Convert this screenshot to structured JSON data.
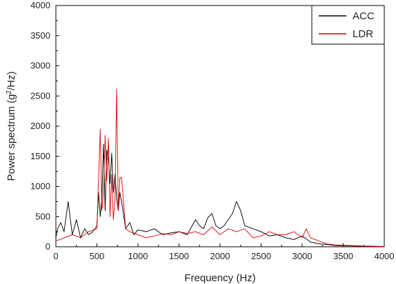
{
  "chart_data": {
    "type": "line",
    "xlabel": "Frequency (Hz)",
    "ylabel_main": "Power spectrum (g",
    "ylabel_sup": "2",
    "ylabel_tail": "/Hz)",
    "xlim": [
      0,
      4000
    ],
    "ylim": [
      0,
      4000
    ],
    "x_ticks": [
      0,
      500,
      1000,
      1500,
      2000,
      2500,
      3000,
      3500,
      4000
    ],
    "y_ticks": [
      0,
      500,
      1000,
      1500,
      2000,
      2500,
      3000,
      3500,
      4000
    ],
    "grid": false,
    "legend_position": "top-right",
    "series": [
      {
        "name": "ACC",
        "color": "#000000",
        "x": [
          0,
          20,
          60,
          100,
          150,
          200,
          250,
          300,
          350,
          400,
          450,
          500,
          520,
          540,
          560,
          580,
          600,
          620,
          640,
          660,
          680,
          700,
          720,
          740,
          760,
          780,
          800,
          850,
          900,
          950,
          1000,
          1100,
          1200,
          1300,
          1400,
          1500,
          1600,
          1700,
          1750,
          1800,
          1850,
          1900,
          1950,
          2000,
          2050,
          2100,
          2150,
          2200,
          2250,
          2300,
          2400,
          2500,
          2600,
          2700,
          2800,
          2900,
          3000,
          3100,
          3200,
          3300,
          3400,
          3600,
          3800,
          4000
        ],
        "y": [
          150,
          300,
          400,
          250,
          750,
          200,
          450,
          150,
          300,
          200,
          250,
          350,
          900,
          500,
          800,
          1700,
          600,
          1600,
          1450,
          1050,
          1550,
          900,
          1200,
          800,
          600,
          900,
          750,
          300,
          400,
          200,
          280,
          250,
          300,
          200,
          230,
          250,
          200,
          450,
          350,
          300,
          480,
          550,
          350,
          300,
          350,
          450,
          550,
          750,
          600,
          350,
          300,
          250,
          180,
          200,
          150,
          120,
          180,
          80,
          50,
          40,
          20,
          15,
          10,
          5
        ]
      },
      {
        "name": "LDR",
        "color": "#d40000",
        "x": [
          0,
          50,
          100,
          200,
          300,
          400,
          500,
          540,
          560,
          580,
          600,
          620,
          640,
          660,
          680,
          700,
          720,
          740,
          760,
          780,
          800,
          850,
          900,
          1000,
          1100,
          1200,
          1300,
          1400,
          1500,
          1600,
          1700,
          1800,
          1900,
          2000,
          2100,
          2200,
          2300,
          2400,
          2500,
          2600,
          2700,
          2800,
          2900,
          3000,
          3050,
          3100,
          3200,
          3300,
          3400,
          3600,
          3800,
          4000
        ],
        "y": [
          100,
          120,
          150,
          200,
          150,
          250,
          300,
          1950,
          600,
          900,
          1850,
          1100,
          1800,
          500,
          1200,
          450,
          800,
          2620,
          600,
          1150,
          1150,
          300,
          250,
          200,
          150,
          180,
          220,
          200,
          250,
          220,
          250,
          200,
          330,
          200,
          300,
          250,
          300,
          150,
          180,
          250,
          200,
          200,
          250,
          150,
          300,
          150,
          100,
          50,
          30,
          20,
          10,
          5
        ]
      }
    ]
  }
}
